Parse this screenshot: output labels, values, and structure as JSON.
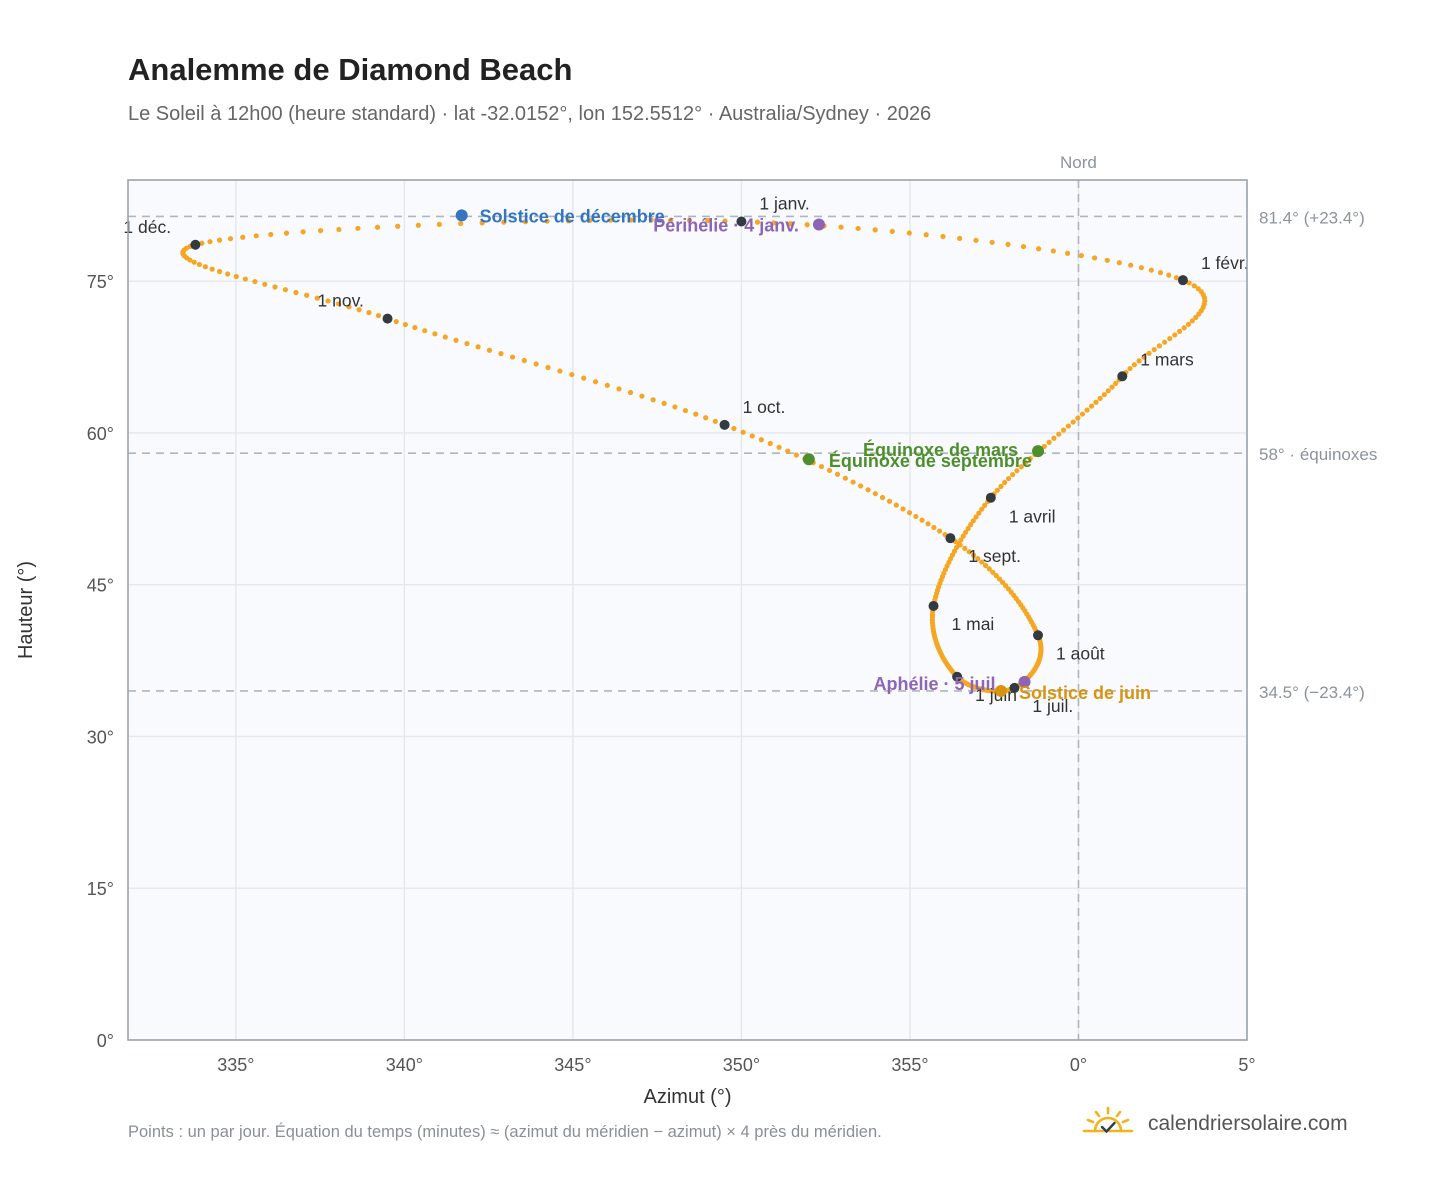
{
  "title": "Analemme de Diamond Beach",
  "subtitle": "Le Soleil à 12h00 (heure standard) · lat -32.0152°, lon 152.5512° · Australia/Sydney · 2026",
  "footnote": "Points : un par jour. Équation du temps (minutes) ≈ (azimut du méridien − azimut) × 4 près du méridien.",
  "brand": {
    "name": "calendriersolaire.com",
    "icon": "sun-check-logo-icon"
  },
  "colors": {
    "path": "#F5A623",
    "month_point": "#333a42",
    "december_solstice": "#3575c0",
    "june_solstice": "#d9940f",
    "equinox": "#4e8f2c",
    "apsis": "#8e65b5",
    "reference_line": "#aeb7c0",
    "plot_background": "#f8fafd",
    "grid": "#e3e8ee",
    "frame": "#9aa4b0"
  },
  "chart_data": {
    "type": "scatter",
    "title": "Analemme de Diamond Beach",
    "xlabel": "Azimut (°)",
    "ylabel": "Hauteur (°)",
    "xlim": [
      -28.2,
      5
    ],
    "ylim": [
      0,
      85
    ],
    "x_ticks": [
      -25,
      -20,
      -15,
      -10,
      -5,
      0,
      5
    ],
    "x_tick_labels": [
      "335°",
      "340°",
      "345°",
      "350°",
      "355°",
      "0°",
      "5°"
    ],
    "y_ticks": [
      0,
      15,
      30,
      45,
      60,
      75
    ],
    "y_tick_labels": [
      "0°",
      "15°",
      "30°",
      "45°",
      "60°",
      "75°"
    ],
    "grid": true,
    "north": {
      "x": 0,
      "label": "Nord"
    },
    "reference_lines": [
      {
        "y": 81.4,
        "label": "81.4° (+23.4°)"
      },
      {
        "y": 58.0,
        "label": "58° · équinoxes"
      },
      {
        "y": 34.5,
        "label": "34.5° (−23.4°)"
      }
    ],
    "series": [
      {
        "description_free": true,
        "points_per_day": true,
        "month_starts": [
          {
            "label": "1 janv.",
            "x": -10.0,
            "y": 80.9
          },
          {
            "label": "1 févr.",
            "x": 3.1,
            "y": 75.1
          },
          {
            "label": "1 mars",
            "x": 1.3,
            "y": 65.6
          },
          {
            "label": "1 avril",
            "x": -2.6,
            "y": 53.6
          },
          {
            "label": "1 mai",
            "x": -4.3,
            "y": 42.9
          },
          {
            "label": "1 juin",
            "x": -3.6,
            "y": 35.9
          },
          {
            "label": "1 juil.",
            "x": -1.9,
            "y": 34.8
          },
          {
            "label": "1 août",
            "x": -1.2,
            "y": 40.0
          },
          {
            "label": "1 sept.",
            "x": -3.8,
            "y": 49.6
          },
          {
            "label": "1 oct.",
            "x": -10.5,
            "y": 60.8
          },
          {
            "label": "1 nov.",
            "x": -20.5,
            "y": 71.3
          },
          {
            "label": "1 déc.",
            "x": -26.2,
            "y": 78.6
          }
        ]
      }
    ],
    "events": [
      {
        "label": "Solstice de décembre",
        "x": -18.3,
        "y": 81.5,
        "kind": "december_solstice"
      },
      {
        "label": "Périhélie · 4 janv.",
        "x": -7.7,
        "y": 80.6,
        "kind": "apsis"
      },
      {
        "label": "Équinoxe de mars",
        "x": -1.2,
        "y": 58.2,
        "kind": "equinox"
      },
      {
        "label": "Équinoxe de septembre",
        "x": -8.0,
        "y": 57.4,
        "kind": "equinox"
      },
      {
        "label": "Aphélie · 5 juil.",
        "x": -1.6,
        "y": 35.4,
        "kind": "apsis"
      },
      {
        "label": "Solstice de juin",
        "x": -2.3,
        "y": 34.5,
        "kind": "june_solstice"
      }
    ]
  }
}
